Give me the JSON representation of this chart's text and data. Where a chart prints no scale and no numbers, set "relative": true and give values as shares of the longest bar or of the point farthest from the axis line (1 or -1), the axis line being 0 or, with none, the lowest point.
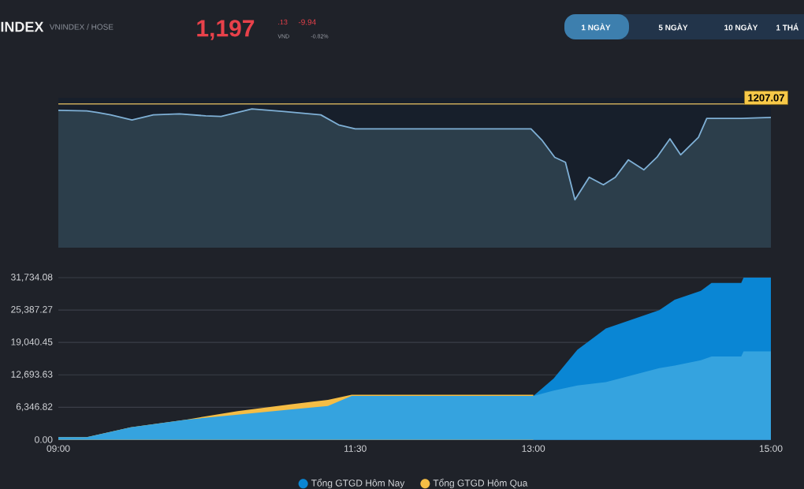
{
  "chart_data": [
    {
      "title": "INDEX",
      "subtitle": "VNINDEX / HOSE",
      "annotations": [
        "1,197",
        ".13",
        "VND",
        "-9.94",
        "-0.82%",
        "1 NGÀY",
        "5 NGÀY",
        "10 NGÀY",
        "1 THÁ",
        "1207.07"
      ],
      "relative": true,
      "color": "#7fb0d6",
      "type": "line",
      "x": [
        9.0,
        9.24,
        9.33,
        9.44,
        9.62,
        9.8,
        10.02,
        10.24,
        10.37,
        10.63,
        10.9,
        11.21,
        11.36,
        11.5,
        12.98,
        13.07,
        13.18,
        13.27,
        13.35,
        13.47,
        13.59,
        13.69,
        13.8,
        13.93,
        14.04,
        14.15,
        14.24,
        14.39,
        14.46,
        14.75,
        15.0
      ],
      "values": [
        0.99,
        0.985,
        0.974,
        0.957,
        0.92,
        0.957,
        0.964,
        0.95,
        0.946,
        1.0,
        0.981,
        0.957,
        0.885,
        0.856,
        0.856,
        0.777,
        0.651,
        0.615,
        0.345,
        0.507,
        0.453,
        0.507,
        0.633,
        0.561,
        0.651,
        0.784,
        0.669,
        0.795,
        0.932,
        0.932,
        0.939
      ],
      "xlim": [
        9,
        15
      ],
      "ref_lines": [
        {
          "axis": "y",
          "value": 1.036,
          "color": "#c9a95a"
        }
      ]
    },
    {
      "type": "area",
      "xlim": [
        9,
        15
      ],
      "xticks": [
        {
          "value": 9,
          "label": "09:00"
        },
        {
          "value": 11.5,
          "label": "11:30"
        },
        {
          "value": 13,
          "label": "13:00"
        },
        {
          "value": 15,
          "label": "15:00"
        }
      ],
      "ylim": [
        0,
        31734.08
      ],
      "yticks": [
        {
          "value": 0,
          "label": "0.00"
        },
        {
          "value": 6346.82,
          "label": "6,346.82"
        },
        {
          "value": 12693.63,
          "label": "12,693.63"
        },
        {
          "value": 19040.45,
          "label": "19,040.45"
        },
        {
          "value": 25387.27,
          "label": "25,387.27"
        },
        {
          "value": 31734.08,
          "label": "31,734.08"
        }
      ],
      "grid": "y",
      "legend": "bottom",
      "series": [
        {
          "name": "Tổng GTGD Hôm Nay",
          "color": "#0a86d4",
          "x": [
            13,
            13.17,
            13.37,
            13.61,
            14.06,
            14.19,
            14.41,
            14.5,
            14.75,
            14.77,
            15
          ],
          "values": [
            8550,
            11950,
            17600,
            21750,
            25350,
            27400,
            29150,
            30700,
            30700,
            31734.08,
            31734.08
          ]
        },
        {
          "name": "Tổng GTGD Hôm Qua",
          "color": "#f5bd45",
          "x": [
            9,
            9.24,
            9.61,
            10.07,
            10.51,
            10.95,
            11.27,
            11.47,
            13
          ],
          "values": [
            500,
            500,
            2400,
            3900,
            5600,
            6900,
            7800,
            8800,
            8800
          ]
        },
        {
          "color": "#35a3df",
          "x": [
            9,
            9.24,
            9.61,
            10.07,
            10.51,
            10.95,
            11.27,
            11.47,
            13,
            13.17,
            13.37,
            13.61,
            14.06,
            14.19,
            14.41,
            14.5,
            14.75,
            14.77,
            15
          ],
          "values": [
            500,
            500,
            2400,
            3900,
            4900,
            5900,
            6600,
            8550,
            8550,
            9600,
            10600,
            11250,
            14000,
            14500,
            15550,
            16300,
            16300,
            17300,
            17300
          ]
        }
      ]
    }
  ]
}
